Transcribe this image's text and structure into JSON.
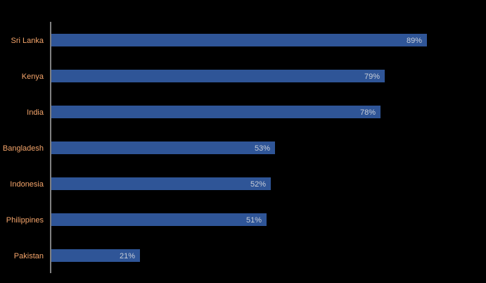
{
  "chart_data": {
    "type": "bar",
    "orientation": "horizontal",
    "categories": [
      "Sri Lanka",
      "Kenya",
      "India",
      "Bangladesh",
      "Indonesia",
      "Philippines",
      "Pakistan"
    ],
    "values": [
      89,
      79,
      78,
      53,
      52,
      51,
      21
    ],
    "data_labels": [
      "89%",
      "79%",
      "78%",
      "53%",
      "52%",
      "51%",
      "21%"
    ],
    "xlim": [
      0,
      100
    ],
    "grid": false,
    "legend": "none",
    "colors": {
      "background": "#000000",
      "bar": "#2f5597",
      "category_text": "#f4a46a",
      "value_text": "#c9cfd9",
      "axis": "#ffffff"
    }
  }
}
